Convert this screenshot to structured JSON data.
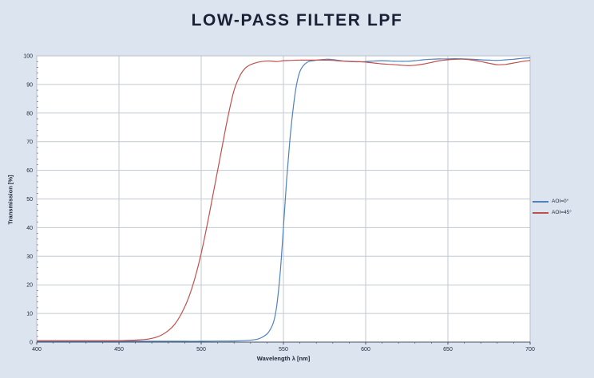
{
  "title": "LOW-PASS FILTER LPF",
  "colors": {
    "background": "#dce4f0",
    "plot_background": "#ffffff",
    "grid": "#c2c9d2",
    "plot_border": "#b9c1cb",
    "axis_line": "#434e60",
    "tick_text": "#222b3a",
    "title_text": "#1a2134",
    "series_blue": "#4f81bd",
    "series_red": "#c0504d"
  },
  "chart_data": {
    "type": "line",
    "title": "LOW-PASS FILTER LPF",
    "xlabel": "Wavelength λ [nm]",
    "ylabel": "Transmission [%]",
    "xlim": [
      400,
      700
    ],
    "ylim": [
      0,
      100
    ],
    "x_ticks": [
      400,
      450,
      500,
      550,
      600,
      650,
      700
    ],
    "y_ticks": [
      0,
      10,
      20,
      30,
      40,
      50,
      60,
      70,
      80,
      90,
      100
    ],
    "x_minor_step": 10,
    "y_minor_step": 2,
    "grid": true,
    "legend_position": "right-outside",
    "series": [
      {
        "name": "AOI=0°",
        "color": "#4f81bd",
        "points": [
          [
            400,
            0.3
          ],
          [
            410,
            0.3
          ],
          [
            420,
            0.3
          ],
          [
            430,
            0.3
          ],
          [
            440,
            0.3
          ],
          [
            450,
            0.3
          ],
          [
            460,
            0.3
          ],
          [
            470,
            0.3
          ],
          [
            480,
            0.3
          ],
          [
            490,
            0.3
          ],
          [
            500,
            0.3
          ],
          [
            510,
            0.35
          ],
          [
            520,
            0.4
          ],
          [
            528,
            0.6
          ],
          [
            534,
            1.0
          ],
          [
            538,
            2.0
          ],
          [
            541,
            3.5
          ],
          [
            544,
            7
          ],
          [
            546,
            13
          ],
          [
            548,
            24
          ],
          [
            550,
            40
          ],
          [
            552,
            57
          ],
          [
            554,
            71
          ],
          [
            556,
            82
          ],
          [
            558,
            90
          ],
          [
            560,
            94.5
          ],
          [
            562,
            96.5
          ],
          [
            565,
            97.9
          ],
          [
            568,
            98.3
          ],
          [
            572,
            98.6
          ],
          [
            576,
            98.8
          ],
          [
            580,
            98.7
          ],
          [
            585,
            98.3
          ],
          [
            590,
            98.0
          ],
          [
            595,
            97.9
          ],
          [
            600,
            98.0
          ],
          [
            605,
            98.2
          ],
          [
            610,
            98.3
          ],
          [
            615,
            98.2
          ],
          [
            620,
            98.1
          ],
          [
            625,
            98.1
          ],
          [
            630,
            98.3
          ],
          [
            635,
            98.6
          ],
          [
            640,
            98.8
          ],
          [
            645,
            98.9
          ],
          [
            650,
            98.9
          ],
          [
            655,
            99.0
          ],
          [
            660,
            98.9
          ],
          [
            665,
            98.8
          ],
          [
            670,
            98.6
          ],
          [
            675,
            98.5
          ],
          [
            680,
            98.4
          ],
          [
            685,
            98.6
          ],
          [
            690,
            98.8
          ],
          [
            695,
            99.1
          ],
          [
            700,
            99.3
          ]
        ]
      },
      {
        "name": "AOI=45°",
        "color": "#c0504d",
        "points": [
          [
            400,
            0.5
          ],
          [
            410,
            0.5
          ],
          [
            420,
            0.5
          ],
          [
            430,
            0.5
          ],
          [
            440,
            0.5
          ],
          [
            450,
            0.5
          ],
          [
            455,
            0.6
          ],
          [
            460,
            0.7
          ],
          [
            465,
            0.9
          ],
          [
            468,
            1.1
          ],
          [
            472,
            1.6
          ],
          [
            476,
            2.5
          ],
          [
            480,
            4
          ],
          [
            484,
            6.3
          ],
          [
            488,
            10
          ],
          [
            492,
            15
          ],
          [
            496,
            22
          ],
          [
            500,
            31
          ],
          [
            504,
            42
          ],
          [
            508,
            54
          ],
          [
            512,
            66
          ],
          [
            516,
            78
          ],
          [
            520,
            88
          ],
          [
            524,
            93.5
          ],
          [
            527,
            95.8
          ],
          [
            530,
            96.9
          ],
          [
            534,
            97.7
          ],
          [
            538,
            98.1
          ],
          [
            542,
            98.2
          ],
          [
            546,
            98.0
          ],
          [
            550,
            98.3
          ],
          [
            555,
            98.4
          ],
          [
            560,
            98.5
          ],
          [
            565,
            98.5
          ],
          [
            570,
            98.5
          ],
          [
            575,
            98.5
          ],
          [
            580,
            98.4
          ],
          [
            585,
            98.2
          ],
          [
            590,
            98.1
          ],
          [
            595,
            98.0
          ],
          [
            600,
            97.8
          ],
          [
            605,
            97.5
          ],
          [
            610,
            97.2
          ],
          [
            615,
            97.0
          ],
          [
            620,
            96.8
          ],
          [
            625,
            96.6
          ],
          [
            630,
            96.7
          ],
          [
            635,
            97.1
          ],
          [
            640,
            97.7
          ],
          [
            645,
            98.3
          ],
          [
            650,
            98.6
          ],
          [
            655,
            98.8
          ],
          [
            660,
            98.8
          ],
          [
            665,
            98.5
          ],
          [
            670,
            98.0
          ],
          [
            675,
            97.4
          ],
          [
            680,
            96.9
          ],
          [
            685,
            97.0
          ],
          [
            690,
            97.5
          ],
          [
            695,
            98.0
          ],
          [
            700,
            98.4
          ]
        ]
      }
    ]
  }
}
